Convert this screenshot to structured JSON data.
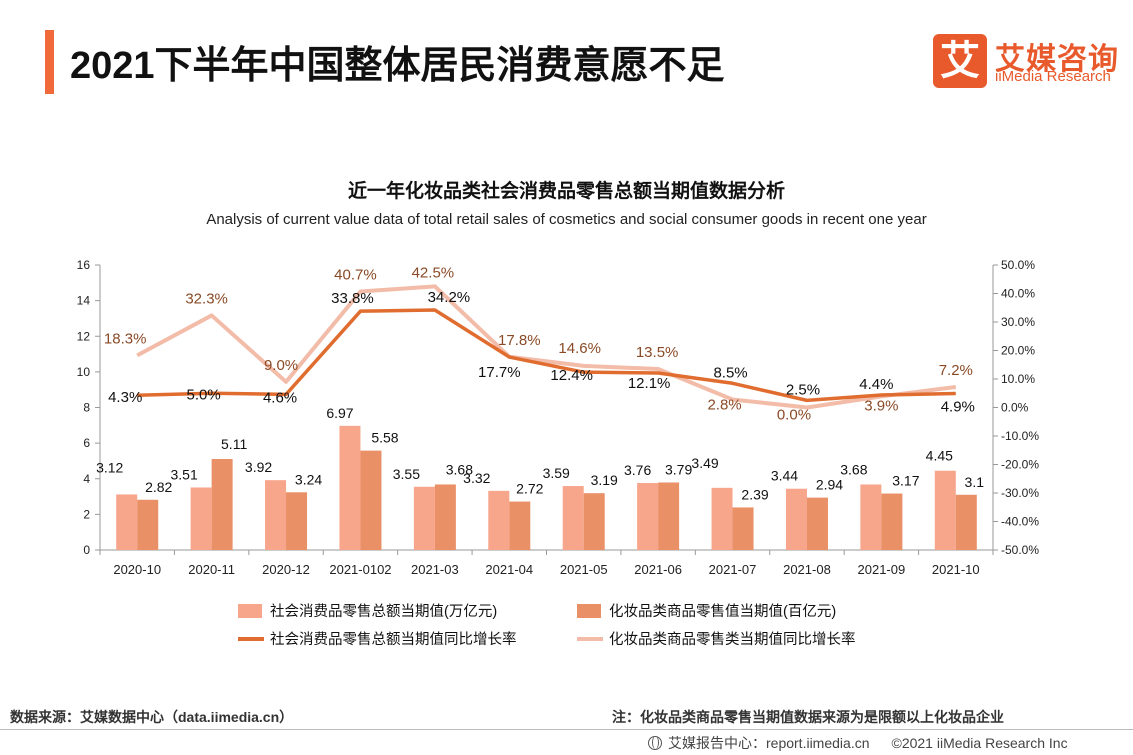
{
  "header": {
    "title": "2021下半年中国整体居民消费意愿不足",
    "logo_mark": "艾",
    "logo_cn": "艾媒咨询",
    "logo_en": "iiMedia Research"
  },
  "colors": {
    "accent": "#f06a3c",
    "bar1": "#f7a58b",
    "bar2": "#ea9067",
    "line1": "#e06d2f",
    "line2": "#f2bca8",
    "label2": "#8a4a26"
  },
  "chart_data": {
    "type": "bar",
    "title": "近一年化妆品类社会消费品零售总额当期值数据分析",
    "subtitle": "Analysis of current value data of total retail sales of cosmetics and social consumer goods in recent one year",
    "categories": [
      "2020-10",
      "2020-11",
      "2020-12",
      "2021-0102",
      "2021-03",
      "2021-04",
      "2021-05",
      "2021-06",
      "2021-07",
      "2021-08",
      "2021-09",
      "2021-10"
    ],
    "y_left": {
      "min": 0,
      "max": 16,
      "ticks": [
        "0",
        "2",
        "4",
        "6",
        "8",
        "10",
        "12",
        "14",
        "16"
      ]
    },
    "y_right": {
      "min": -50,
      "max": 50,
      "ticks": [
        "-50.0%",
        "-40.0%",
        "-30.0%",
        "-20.0%",
        "-10.0%",
        "0.0%",
        "10.0%",
        "20.0%",
        "30.0%",
        "40.0%",
        "50.0%"
      ]
    },
    "series": [
      {
        "name": "社会消费品零售总额当期值(万亿元)",
        "type": "bar",
        "axis": "left",
        "values": [
          3.12,
          3.51,
          3.92,
          6.97,
          3.55,
          3.32,
          3.59,
          3.76,
          3.49,
          3.44,
          3.68,
          4.45
        ],
        "labels": [
          "3.12",
          "3.51",
          "3.92",
          "6.97",
          "3.55",
          "3.32",
          "3.59",
          "3.76",
          "3.49",
          "3.44",
          "3.68",
          "4.45"
        ]
      },
      {
        "name": "化妆品类商品零售值当期值(百亿元)",
        "type": "bar",
        "axis": "left",
        "values": [
          2.82,
          5.11,
          3.24,
          5.58,
          3.68,
          2.72,
          3.19,
          3.79,
          2.39,
          2.94,
          3.17,
          3.1
        ],
        "labels": [
          "2.82",
          "5.11",
          "3.24",
          "5.58",
          "3.68",
          "2.72",
          "3.19",
          "3.79",
          "2.39",
          "2.94",
          "3.17",
          "3.1"
        ]
      },
      {
        "name": "社会消费品零售总额当期值同比增长率",
        "type": "line",
        "axis": "right",
        "values": [
          4.3,
          5.0,
          4.6,
          33.8,
          34.2,
          17.7,
          12.4,
          12.1,
          8.5,
          2.5,
          4.4,
          4.9
        ],
        "labels": [
          "4.3%",
          "5.0%",
          "4.6%",
          "33.8%",
          "34.2%",
          "17.7%",
          "12.4%",
          "12.1%",
          "8.5%",
          "2.5%",
          "4.4%",
          "4.9%"
        ]
      },
      {
        "name": "化妆品类商品零售类当期值同比增长率",
        "type": "line",
        "axis": "right",
        "values": [
          18.3,
          32.3,
          9.0,
          40.7,
          42.5,
          17.8,
          14.6,
          13.5,
          2.8,
          0.0,
          3.9,
          7.2
        ],
        "labels": [
          "18.3%",
          "32.3%",
          "9.0%",
          "40.7%",
          "42.5%",
          "17.8%",
          "14.6%",
          "13.5%",
          "2.8%",
          "0.0%",
          "3.9%",
          "7.2%"
        ]
      }
    ]
  },
  "footer": {
    "source": "数据来源：艾媒数据中心（data.iimedia.cn）",
    "note": "注：化妆品类商品零售当期值数据来源为是限额以上化妆品企业",
    "report_site": "艾媒报告中心：report.iimedia.cn",
    "copyright": "©2021  iiMedia Research  Inc"
  }
}
